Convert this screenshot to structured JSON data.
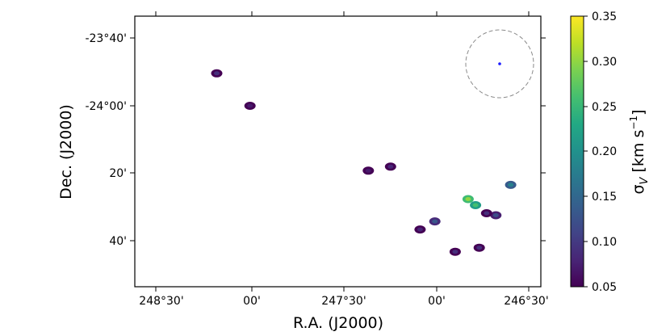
{
  "chart_data": {
    "type": "heatmap",
    "xlabel": "R.A. (J2000)",
    "ylabel": "Dec. (J2000)",
    "x_tick_labels": [
      "248°30'",
      "00'",
      "247°30'",
      "00'",
      "246°30'"
    ],
    "y_tick_labels": [
      "-23°40'",
      "-24°00'",
      "20'",
      "40'"
    ],
    "colorbar": {
      "label": "σV [km s−1]",
      "label_main": "σ",
      "label_sub": "V",
      "label_unit_open": " [km s",
      "label_unit_exp": "−1",
      "label_unit_close": "]",
      "colormap": "viridis",
      "range": [
        0.05,
        0.35
      ],
      "tick_labels": [
        "0.05",
        "0.10",
        "0.15",
        "0.20",
        "0.25",
        "0.30",
        "0.35"
      ]
    },
    "beam_marker": "dashed circle with blue center point, top-right",
    "clumps": [
      {
        "ra": 248.19,
        "dec": -23.84,
        "sigma": 0.09
      },
      {
        "ra": 248.01,
        "dec": -24.0,
        "sigma": 0.07
      },
      {
        "ra": 247.37,
        "dec": -24.32,
        "sigma": 0.07
      },
      {
        "ra": 247.25,
        "dec": -24.3,
        "sigma": 0.08
      },
      {
        "ra": 246.83,
        "dec": -24.46,
        "sigma": 0.3
      },
      {
        "ra": 246.79,
        "dec": -24.49,
        "sigma": 0.26
      },
      {
        "ra": 246.68,
        "dec": -24.54,
        "sigma": 0.12
      },
      {
        "ra": 246.6,
        "dec": -24.39,
        "sigma": 0.18
      },
      {
        "ra": 247.01,
        "dec": -24.57,
        "sigma": 0.13
      },
      {
        "ra": 247.09,
        "dec": -24.61,
        "sigma": 0.08
      },
      {
        "ra": 246.9,
        "dec": -24.72,
        "sigma": 0.09
      },
      {
        "ra": 246.77,
        "dec": -24.7,
        "sigma": 0.09
      },
      {
        "ra": 246.73,
        "dec": -24.53,
        "sigma": 0.09
      }
    ]
  },
  "colors": {
    "beam_circle": "#8a8a8a",
    "beam_center": "#1a1aff",
    "frame": "#000000"
  }
}
